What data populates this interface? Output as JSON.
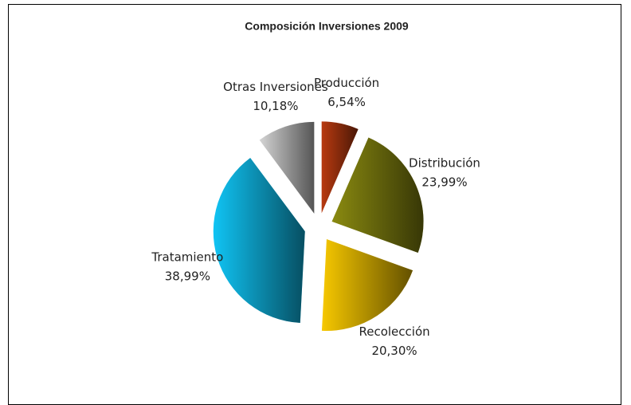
{
  "chart_data": {
    "type": "pie",
    "title": "Composición Inversiones 2009",
    "categories": [
      "Producción",
      "Distribución",
      "Recolección",
      "Tratamiento",
      "Otras Inversiones"
    ],
    "values": [
      6.54,
      23.99,
      20.3,
      38.99,
      10.18
    ],
    "value_labels": [
      "6,54%",
      "23,99%",
      "20,30%",
      "38,99%",
      "10,18%"
    ],
    "colors": [
      "#b83a10",
      "#8a8a10",
      "#f7c800",
      "#10c4f4",
      "#d4d4d4"
    ]
  }
}
